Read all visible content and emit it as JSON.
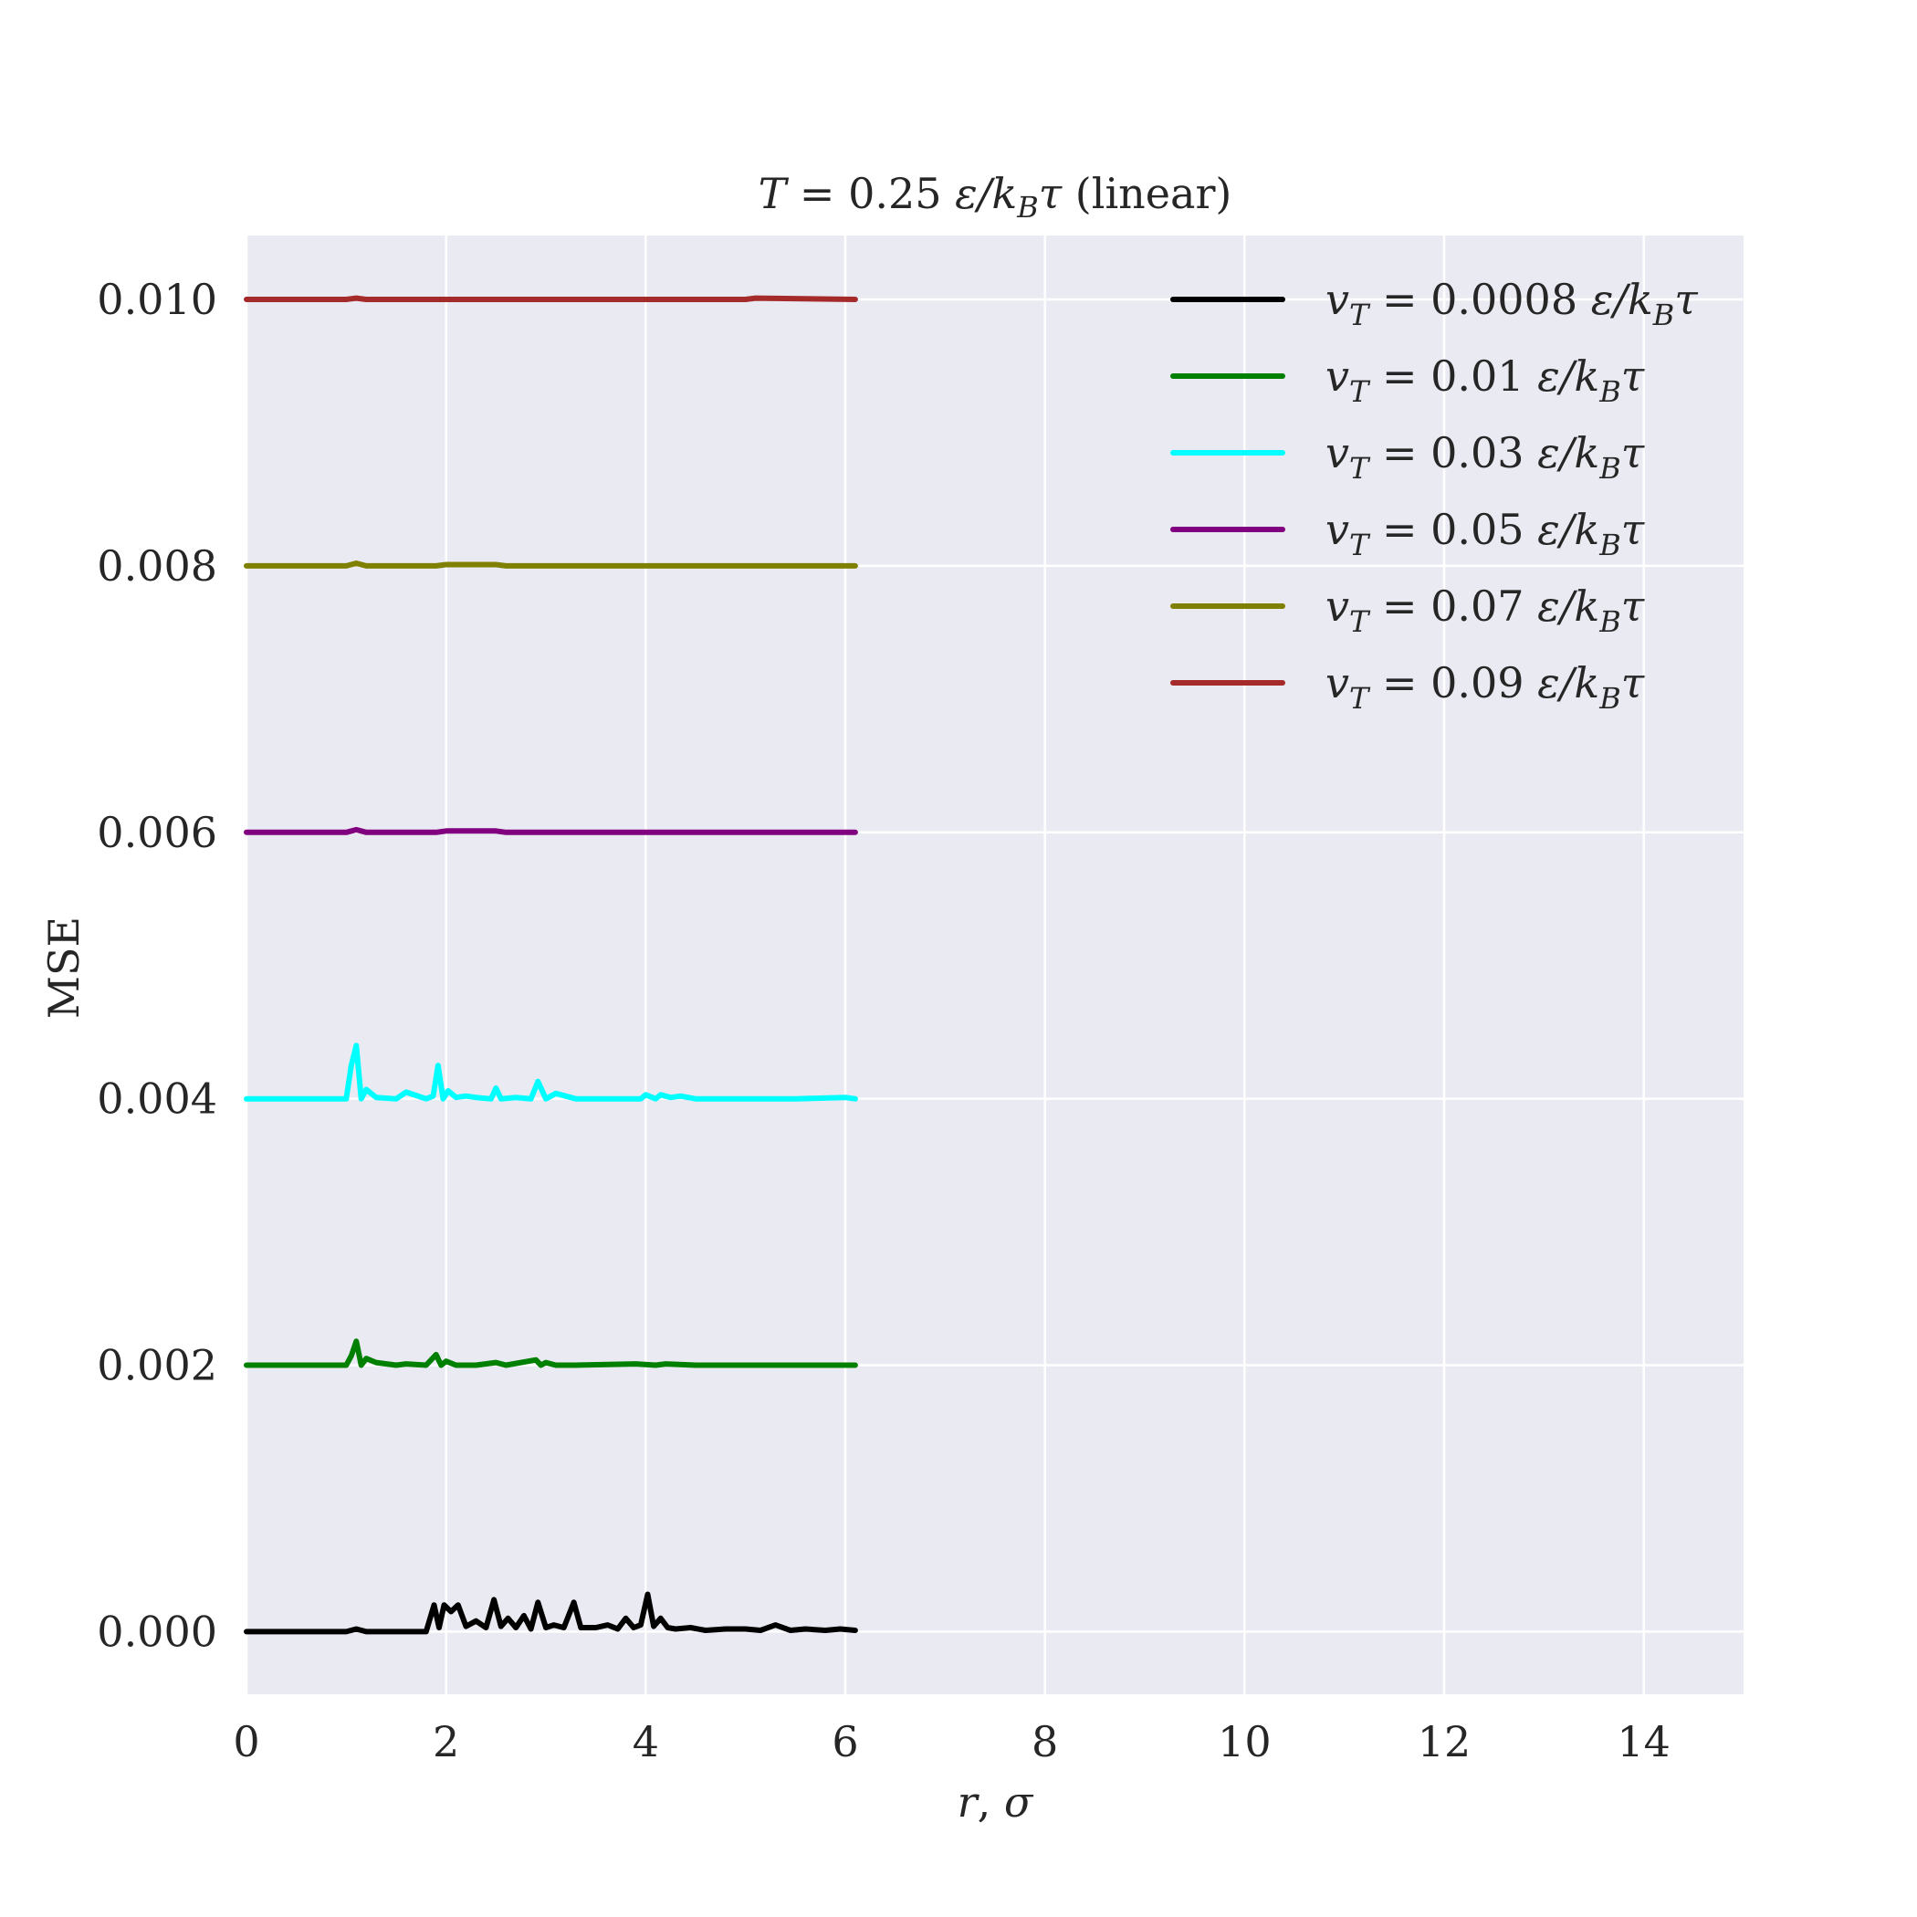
{
  "chart_data": {
    "type": "line",
    "title": "T = 0.25 ε/k_Bτ (linear)",
    "title_parts": {
      "var": "T",
      "eq": " = 0.25 ",
      "unit_eps": "ε/k",
      "unit_sub": "B",
      "unit_tau": "τ",
      "suffix": " (linear)"
    },
    "xlabel": "r, σ",
    "xlabel_parts": {
      "r": "r",
      "sep": ", ",
      "sigma": "σ"
    },
    "ylabel": "MSE",
    "xlim": [
      0,
      15
    ],
    "ylim": [
      -0.00047,
      0.01048
    ],
    "x_ticks": [
      0,
      2,
      4,
      6,
      8,
      10,
      12,
      14
    ],
    "x_tick_labels": [
      "0",
      "2",
      "4",
      "6",
      "8",
      "10",
      "12",
      "14"
    ],
    "y_ticks": [
      0.0,
      0.002,
      0.004,
      0.006,
      0.008,
      0.01
    ],
    "y_tick_labels": [
      "0.000",
      "0.002",
      "0.004",
      "0.006",
      "0.008",
      "0.010"
    ],
    "grid": true,
    "legend_position": "top-right",
    "background_color": "#eaeaf2",
    "grid_color": "#ffffff",
    "series": [
      {
        "name": "v_T = 0.0008 ε/k_Bτ",
        "label_value": "0.0008",
        "color": "#000000",
        "x": [
          0,
          1.0,
          1.1,
          1.2,
          1.5,
          1.8,
          1.88,
          1.93,
          1.98,
          2.05,
          2.12,
          2.2,
          2.3,
          2.4,
          2.48,
          2.55,
          2.62,
          2.7,
          2.78,
          2.85,
          2.92,
          3.0,
          3.08,
          3.18,
          3.28,
          3.35,
          3.42,
          3.5,
          3.62,
          3.72,
          3.8,
          3.88,
          3.95,
          4.02,
          4.08,
          4.15,
          4.22,
          4.3,
          4.45,
          4.6,
          4.8,
          5.0,
          5.15,
          5.3,
          5.45,
          5.6,
          5.8,
          5.95,
          6.1
        ],
        "y": [
          0,
          0,
          2e-05,
          0,
          0,
          0,
          0.0002,
          3e-05,
          0.0002,
          0.00015,
          0.0002,
          4e-05,
          8e-05,
          3e-05,
          0.00024,
          4e-05,
          0.0001,
          3e-05,
          0.00012,
          2e-05,
          0.00022,
          3e-05,
          5e-05,
          3e-05,
          0.00022,
          3e-05,
          3e-05,
          3e-05,
          5e-05,
          2e-05,
          0.0001,
          3e-05,
          5e-05,
          0.00028,
          4e-05,
          0.0001,
          3e-05,
          2e-05,
          3e-05,
          1e-05,
          2e-05,
          2e-05,
          1e-05,
          5e-05,
          1e-05,
          2e-05,
          1e-05,
          2e-05,
          1e-05
        ]
      },
      {
        "name": "v_T = 0.01 ε/k_Bτ",
        "label_value": "0.01",
        "color": "#008000",
        "x": [
          0,
          1.0,
          1.05,
          1.1,
          1.15,
          1.2,
          1.3,
          1.5,
          1.6,
          1.8,
          1.9,
          1.95,
          2.0,
          2.1,
          2.3,
          2.5,
          2.6,
          2.9,
          2.95,
          3.0,
          3.1,
          3.3,
          3.9,
          4.1,
          4.2,
          4.5,
          5.0,
          5.5,
          6.1
        ],
        "y": [
          0.002,
          0.002,
          0.00207,
          0.00218,
          0.002,
          0.00205,
          0.00202,
          0.002,
          0.00201,
          0.002,
          0.00208,
          0.002,
          0.00203,
          0.002,
          0.002,
          0.00202,
          0.002,
          0.00204,
          0.002,
          0.00202,
          0.002,
          0.002,
          0.00201,
          0.002,
          0.00201,
          0.002,
          0.002,
          0.002,
          0.002
        ]
      },
      {
        "name": "v_T = 0.03 ε/k_Bτ",
        "label_value": "0.03",
        "color": "#00ffff",
        "x": [
          0,
          1.0,
          1.05,
          1.1,
          1.15,
          1.2,
          1.3,
          1.5,
          1.6,
          1.8,
          1.87,
          1.92,
          1.97,
          2.02,
          2.1,
          2.2,
          2.3,
          2.45,
          2.5,
          2.55,
          2.7,
          2.85,
          2.92,
          3.0,
          3.1,
          3.3,
          3.95,
          4.0,
          4.1,
          4.15,
          4.25,
          4.35,
          4.5,
          5.0,
          5.5,
          6.0,
          6.1
        ],
        "y": [
          0.004,
          0.004,
          0.00425,
          0.0044,
          0.004,
          0.00407,
          0.00401,
          0.004,
          0.00405,
          0.004,
          0.00402,
          0.00425,
          0.004,
          0.00406,
          0.00401,
          0.00402,
          0.00401,
          0.004,
          0.00408,
          0.004,
          0.00401,
          0.004,
          0.00413,
          0.004,
          0.00404,
          0.004,
          0.004,
          0.00403,
          0.004,
          0.00403,
          0.00401,
          0.00402,
          0.004,
          0.004,
          0.004,
          0.00401,
          0.004
        ]
      },
      {
        "name": "v_T = 0.05 ε/k_Bτ",
        "label_value": "0.05",
        "color": "#800080",
        "x": [
          0,
          1.0,
          1.1,
          1.2,
          1.9,
          2.0,
          2.5,
          2.6,
          6.1
        ],
        "y": [
          0.006,
          0.006,
          0.00602,
          0.006,
          0.006,
          0.00601,
          0.00601,
          0.006,
          0.006
        ]
      },
      {
        "name": "v_T = 0.07 ε/k_Bτ",
        "label_value": "0.07",
        "color": "#808000",
        "x": [
          0,
          1.0,
          1.1,
          1.2,
          1.9,
          2.0,
          2.5,
          2.6,
          6.1
        ],
        "y": [
          0.008,
          0.008,
          0.00802,
          0.008,
          0.008,
          0.00801,
          0.00801,
          0.008,
          0.008
        ]
      },
      {
        "name": "v_T = 0.09 ε/k_Bτ",
        "label_value": "0.09",
        "color": "#a52a2a",
        "x": [
          0,
          1.0,
          1.1,
          1.2,
          5.0,
          5.1,
          6.1
        ],
        "y": [
          0.01,
          0.01,
          0.01001,
          0.01,
          0.01,
          0.01001,
          0.01
        ]
      }
    ],
    "legend_parts": {
      "var": "v",
      "var_sub": "T",
      "eq": " = ",
      "unit_eps": " ε/k",
      "unit_sub": "B",
      "unit_tau": "τ"
    }
  }
}
